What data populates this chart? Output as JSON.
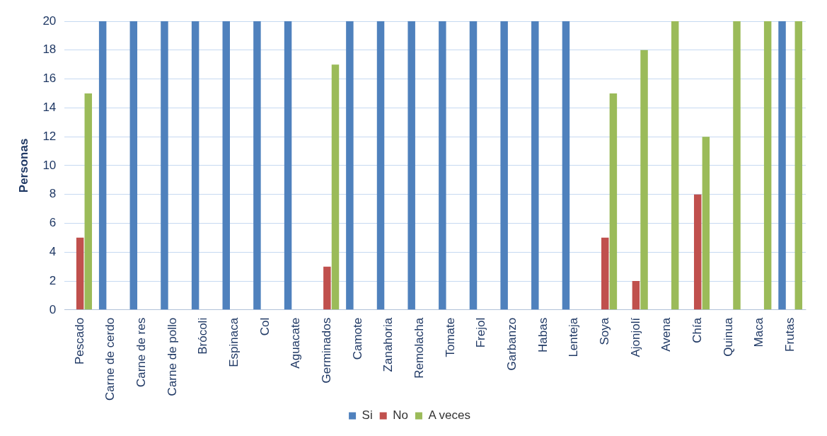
{
  "chart_data": {
    "type": "bar",
    "ylabel": "Personas",
    "categories": [
      "Pescado",
      "Carne de cerdo",
      "Carne de res",
      "Carne de pollo",
      "Brócoli",
      "Espinaca",
      "Col",
      "Aguacate",
      "Germinados",
      "Camote",
      "Zanahoria",
      "Remolacha",
      "Tomate",
      "Frejol",
      "Garbanzo",
      "Habas",
      "Lenteja",
      "Soya",
      "Ajonjolí",
      "Avena",
      "Chía",
      "Quinua",
      "Maca",
      "Frutas"
    ],
    "series": [
      {
        "name": "Si",
        "color": "#4f81bd",
        "values": [
          0,
          20,
          20,
          20,
          20,
          20,
          20,
          20,
          0,
          20,
          20,
          20,
          20,
          20,
          20,
          20,
          20,
          0,
          0,
          0,
          0,
          0,
          0,
          20
        ]
      },
      {
        "name": "No",
        "color": "#c0504d",
        "values": [
          5,
          0,
          0,
          0,
          0,
          0,
          0,
          0,
          3,
          0,
          0,
          0,
          0,
          0,
          0,
          0,
          0,
          5,
          2,
          0,
          8,
          0,
          0,
          0
        ]
      },
      {
        "name": "A veces",
        "color": "#9bbb59",
        "values": [
          15,
          0,
          0,
          0,
          0,
          0,
          0,
          0,
          17,
          0,
          0,
          0,
          0,
          0,
          0,
          0,
          0,
          15,
          18,
          20,
          12,
          20,
          20,
          20
        ]
      }
    ],
    "ylim": [
      0,
      20
    ],
    "yticks": [
      0,
      2,
      4,
      6,
      8,
      10,
      12,
      14,
      16,
      18,
      20
    ],
    "grid": "y",
    "legend": "bottom"
  }
}
